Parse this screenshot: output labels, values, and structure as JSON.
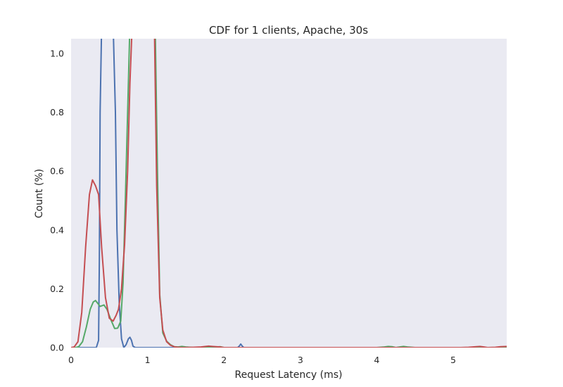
{
  "chart_data": {
    "type": "line",
    "title": "CDF for 1 clients, Apache, 30s",
    "xlabel": "Request Latency (ms)",
    "ylabel": "Count (%)",
    "xlim": [
      0,
      5.7
    ],
    "ylim": [
      0,
      1.05
    ],
    "grid": false,
    "legend": "none",
    "background": "#eaeaf2",
    "xticks": [
      0,
      1,
      2,
      3,
      4,
      5
    ],
    "xtick_labels": [
      "0",
      "1",
      "2",
      "3",
      "4",
      "5"
    ],
    "yticks": [
      0.0,
      0.2,
      0.4,
      0.6,
      0.8,
      1.0
    ],
    "ytick_labels": [
      "0.0",
      "0.2",
      "0.4",
      "0.6",
      "0.8",
      "1.0"
    ],
    "series": [
      {
        "color": "#4c72b0",
        "x": [
          0,
          0.3,
          0.33,
          0.36,
          0.37,
          0.38,
          0.4,
          0.55,
          0.58,
          0.6,
          0.63,
          0.66,
          0.69,
          0.72,
          0.75,
          0.77,
          0.79,
          0.81,
          0.84,
          2.18,
          2.2,
          2.22,
          2.24,
          2.26,
          5.7
        ],
        "y": [
          0,
          0,
          0,
          0.025,
          0.3,
          0.8,
          1.1,
          1.1,
          0.8,
          0.4,
          0.15,
          0.03,
          0.0,
          0.01,
          0.03,
          0.035,
          0.025,
          0.005,
          0,
          0,
          0.005,
          0.012,
          0.005,
          0,
          0
        ]
      },
      {
        "color": "#55a868",
        "x": [
          0,
          0.06,
          0.1,
          0.15,
          0.2,
          0.25,
          0.29,
          0.32,
          0.35,
          0.38,
          0.43,
          0.47,
          0.52,
          0.57,
          0.61,
          0.65,
          0.68,
          0.71,
          0.74,
          0.77,
          0.8,
          0.83,
          0.87,
          1.1,
          1.13,
          1.16,
          1.2,
          1.25,
          1.3,
          1.35,
          1.4,
          1.45,
          1.5,
          1.6,
          1.7,
          1.8,
          1.85,
          1.9,
          1.95,
          2.0,
          2.1,
          4.0,
          4.1,
          4.15,
          4.2,
          4.25,
          4.3,
          4.35,
          4.4,
          4.5,
          5.7
        ],
        "y": [
          0,
          0,
          0.003,
          0.02,
          0.07,
          0.13,
          0.155,
          0.16,
          0.15,
          0.14,
          0.145,
          0.13,
          0.095,
          0.065,
          0.066,
          0.09,
          0.22,
          0.5,
          0.8,
          1.1,
          1.1,
          1.1,
          1.1,
          1.1,
          0.6,
          0.18,
          0.05,
          0.022,
          0.01,
          0.003,
          0.002,
          0.004,
          0.002,
          0,
          0,
          0,
          0.003,
          0.002,
          0.003,
          0,
          0,
          0,
          0.002,
          0.004,
          0.003,
          0,
          0.002,
          0.004,
          0.002,
          0,
          0
        ]
      },
      {
        "color": "#c44e52",
        "x": [
          0,
          0.04,
          0.09,
          0.14,
          0.19,
          0.24,
          0.28,
          0.32,
          0.36,
          0.4,
          0.45,
          0.5,
          0.55,
          0.59,
          0.62,
          0.66,
          0.7,
          0.74,
          0.77,
          0.8,
          0.82,
          0.84,
          1.06,
          1.09,
          1.12,
          1.16,
          1.2,
          1.25,
          1.3,
          1.36,
          1.45,
          1.6,
          1.7,
          1.8,
          1.85,
          1.9,
          1.95,
          2.0,
          2.1,
          5.1,
          5.2,
          5.3,
          5.35,
          5.4,
          5.45,
          5.55,
          5.62,
          5.7
        ],
        "y": [
          0,
          0.002,
          0.02,
          0.12,
          0.34,
          0.52,
          0.57,
          0.55,
          0.52,
          0.34,
          0.17,
          0.1,
          0.09,
          0.11,
          0.13,
          0.2,
          0.35,
          0.6,
          0.9,
          1.1,
          1.1,
          1.1,
          1.1,
          1.1,
          0.55,
          0.17,
          0.06,
          0.02,
          0.008,
          0.002,
          0,
          0.001,
          0.002,
          0.005,
          0.004,
          0.003,
          0.002,
          0,
          0,
          0,
          0.001,
          0.003,
          0.004,
          0.002,
          0,
          0.001,
          0.003,
          0.004
        ]
      }
    ]
  }
}
